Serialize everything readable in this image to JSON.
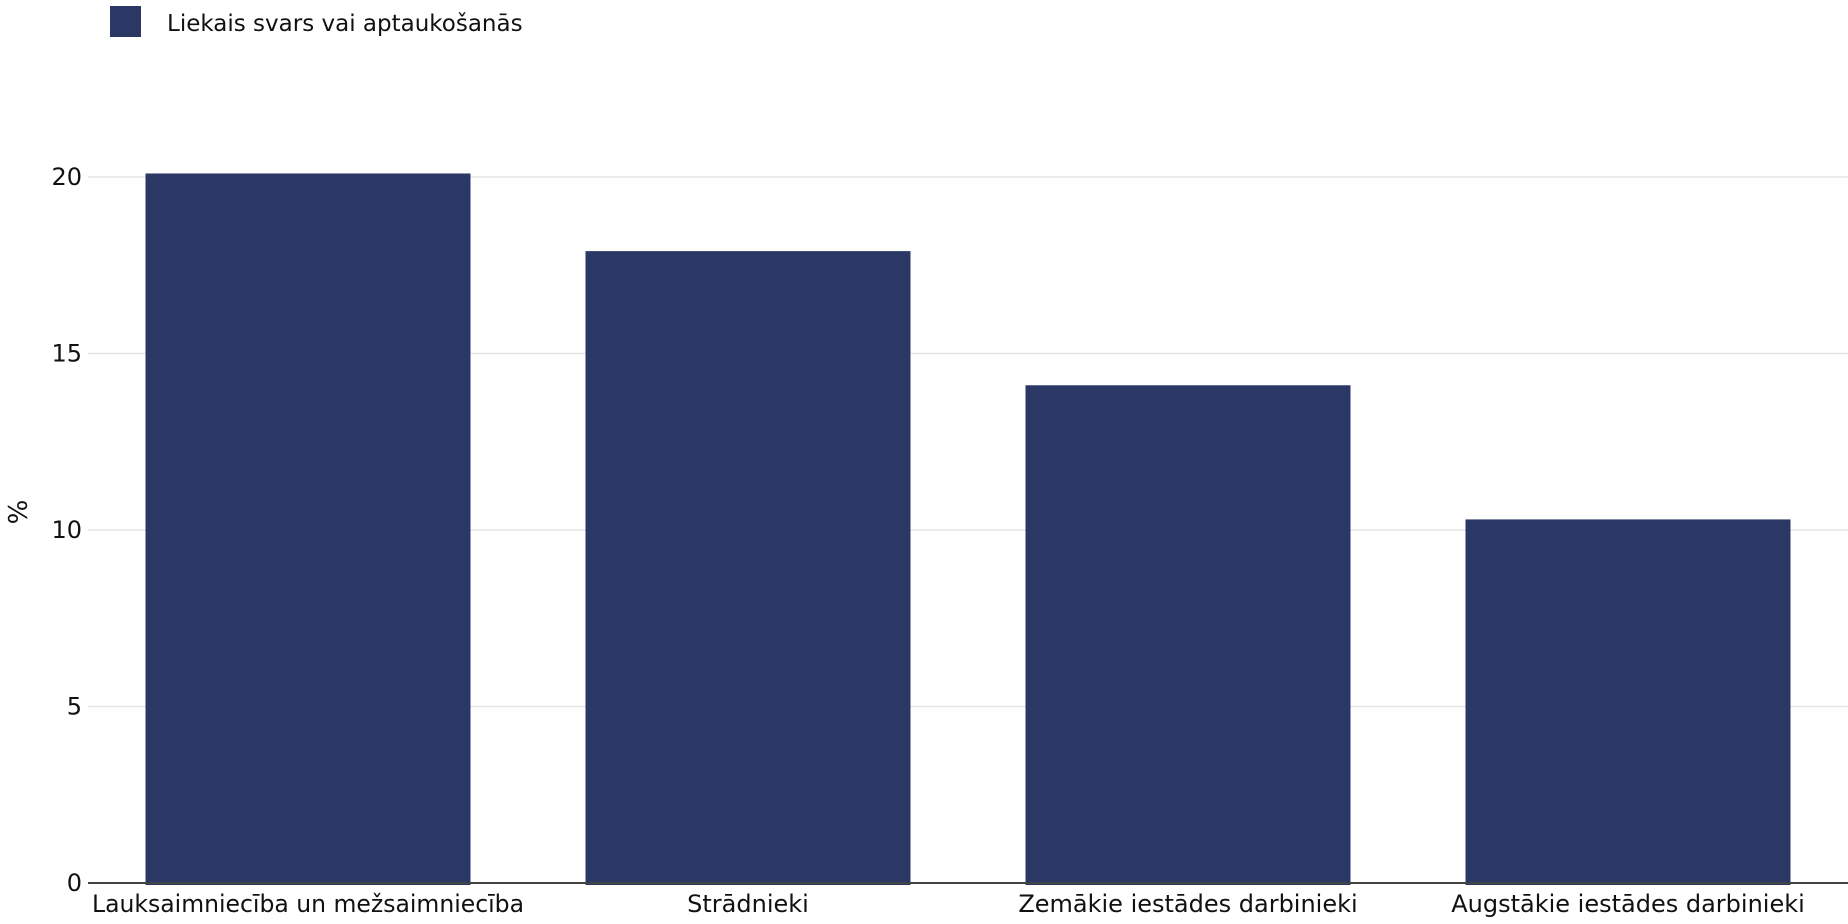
{
  "chart_data": {
    "type": "bar",
    "categories": [
      "Lauksaimniecība un mežsaimniecība",
      "Strādnieki",
      "Zemākie iestādes darbinieki",
      "Augstākie iestādes darbinieki"
    ],
    "series": [
      {
        "name": "Liekais svars vai aptaukošanās",
        "values": [
          20.1,
          17.9,
          14.1,
          10.3
        ],
        "color": "#2b3764"
      }
    ],
    "xlabel": "",
    "ylabel": "%",
    "ylim": [
      0,
      20
    ],
    "yticks": [
      0,
      5,
      10,
      15,
      20
    ],
    "grid": true,
    "legend_position": "top-left"
  }
}
